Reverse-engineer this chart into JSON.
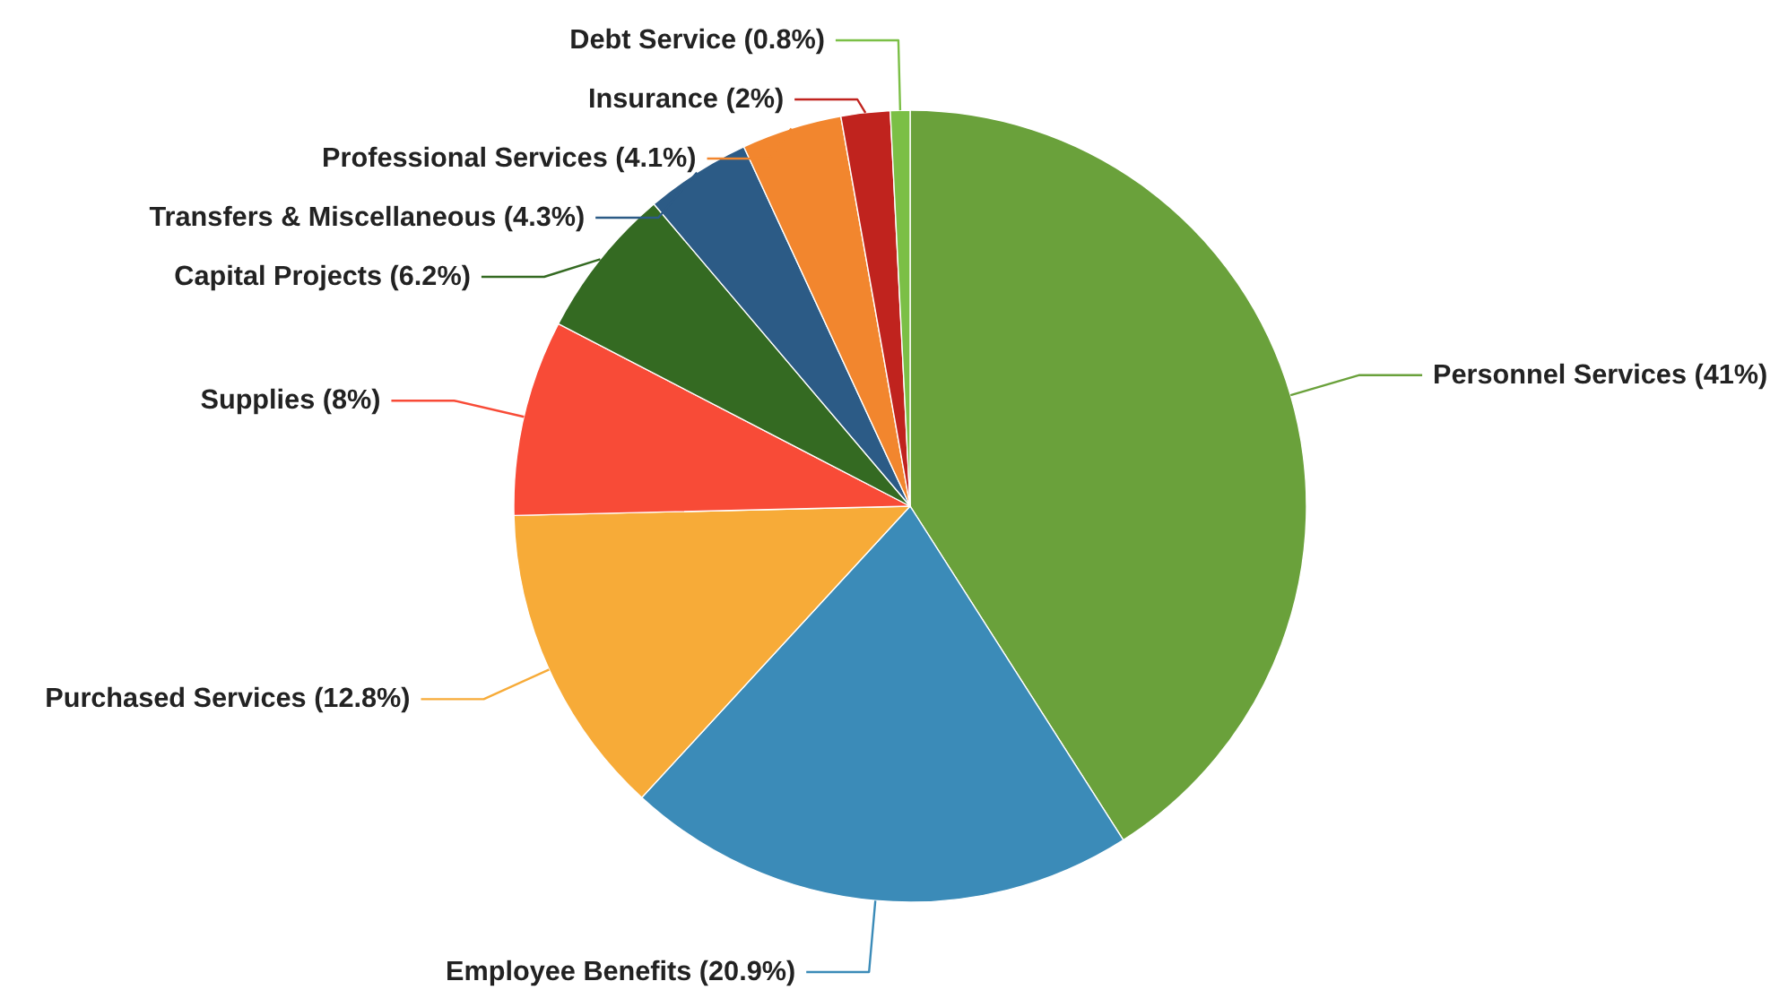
{
  "chart_data": {
    "type": "pie",
    "categories": [
      "Personnel Services",
      "Employee Benefits",
      "Purchased Services",
      "Supplies",
      "Capital Projects",
      "Transfers & Miscellaneous",
      "Professional Services",
      "Insurance",
      "Debt Service"
    ],
    "values": [
      41,
      20.9,
      12.8,
      8,
      6.2,
      4.3,
      4.1,
      2,
      0.8
    ],
    "value_labels": [
      "(41%)",
      "(20.9%)",
      "(12.8%)",
      "(8%)",
      "(6.2%)",
      "(4.3%)",
      "(4.1%)",
      "(2%)",
      "(0.8%)"
    ],
    "colors": [
      "#6aa13b",
      "#3b8bb8",
      "#f7ab38",
      "#f84b37",
      "#346a22",
      "#2c5b86",
      "#f2862e",
      "#c0231e",
      "#7bbf46"
    ]
  }
}
